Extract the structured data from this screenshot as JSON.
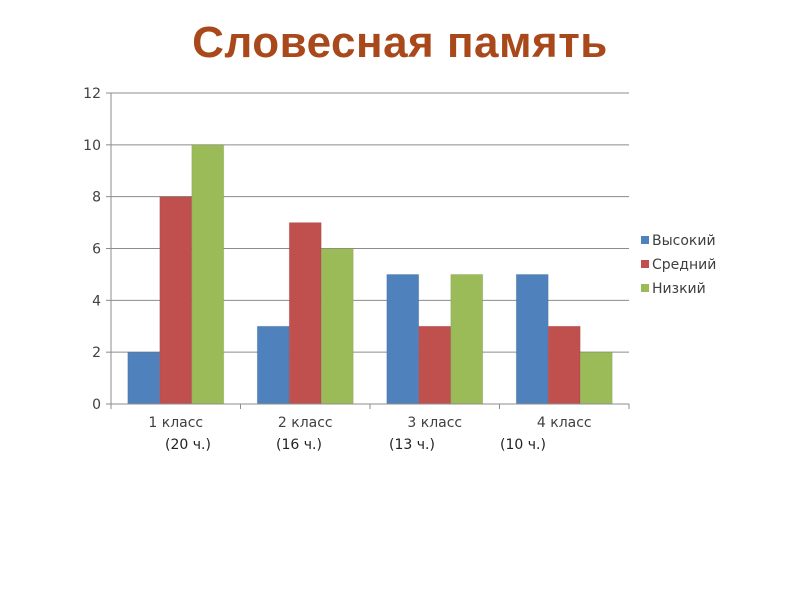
{
  "title": "Словесная память",
  "chart_data": {
    "type": "bar",
    "categories": [
      "1 класс",
      "2 класс",
      "3 класс",
      "4 класс"
    ],
    "series": [
      {
        "name": "Высокий",
        "values": [
          2,
          3,
          5,
          5
        ],
        "color": "#4F81BD"
      },
      {
        "name": "Средний",
        "values": [
          8,
          7,
          3,
          3
        ],
        "color": "#C0504D"
      },
      {
        "name": "Низкий",
        "values": [
          10,
          6,
          5,
          2
        ],
        "color": "#9BBB59"
      }
    ],
    "ylim": [
      0,
      12
    ],
    "yticks": [
      0,
      2,
      4,
      6,
      8,
      10,
      12
    ],
    "grid": true,
    "legend": "right",
    "category_notes": [
      "(20 ч.)",
      "(16 ч.)",
      "(13 ч.)",
      "(10 ч.)"
    ]
  }
}
